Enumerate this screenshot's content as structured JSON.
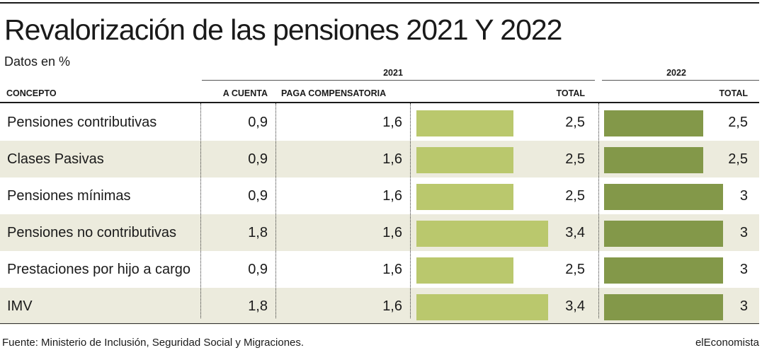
{
  "title": "Revalorización de las pensiones 2021 Y 2022",
  "subtitle": "Datos en %",
  "source": "Fuente: Ministerio de Inclusión, Seguridad Social y Migraciones.",
  "brand": "elEconomista",
  "colors": {
    "bar_2021": "#bac86d",
    "bar_2022": "#839849",
    "row_alt": "#ecebdd"
  },
  "chart_data": {
    "type": "table",
    "title": "Revalorización de las pensiones 2021 Y 2022",
    "subtitle": "Datos en %",
    "groups": [
      "2021",
      "2022"
    ],
    "columns": [
      "CONCEPTO",
      "A CUENTA",
      "PAGA COMPENSATORIA",
      "TOTAL",
      "TOTAL"
    ],
    "bar_max": 3.4,
    "rows": [
      {
        "concepto": "Pensiones contributivas",
        "a_cuenta": "0,9",
        "paga": "1,6",
        "total_2021": "2,5",
        "total_2022": "2,5",
        "v2021": 2.5,
        "v2022": 2.5
      },
      {
        "concepto": "Clases Pasivas",
        "a_cuenta": "0,9",
        "paga": "1,6",
        "total_2021": "2,5",
        "total_2022": "2,5",
        "v2021": 2.5,
        "v2022": 2.5
      },
      {
        "concepto": "Pensiones mínimas",
        "a_cuenta": "0,9",
        "paga": "1,6",
        "total_2021": "2,5",
        "total_2022": "3",
        "v2021": 2.5,
        "v2022": 3
      },
      {
        "concepto": "Pensiones no contributivas",
        "a_cuenta": "1,8",
        "paga": "1,6",
        "total_2021": "3,4",
        "total_2022": "3",
        "v2021": 3.4,
        "v2022": 3
      },
      {
        "concepto": "Prestaciones por hijo a cargo",
        "a_cuenta": "0,9",
        "paga": "1,6",
        "total_2021": "2,5",
        "total_2022": "3",
        "v2021": 2.5,
        "v2022": 3
      },
      {
        "concepto": "IMV",
        "a_cuenta": "1,8",
        "paga": "1,6",
        "total_2021": "3,4",
        "total_2022": "3",
        "v2021": 3.4,
        "v2022": 3
      }
    ]
  }
}
